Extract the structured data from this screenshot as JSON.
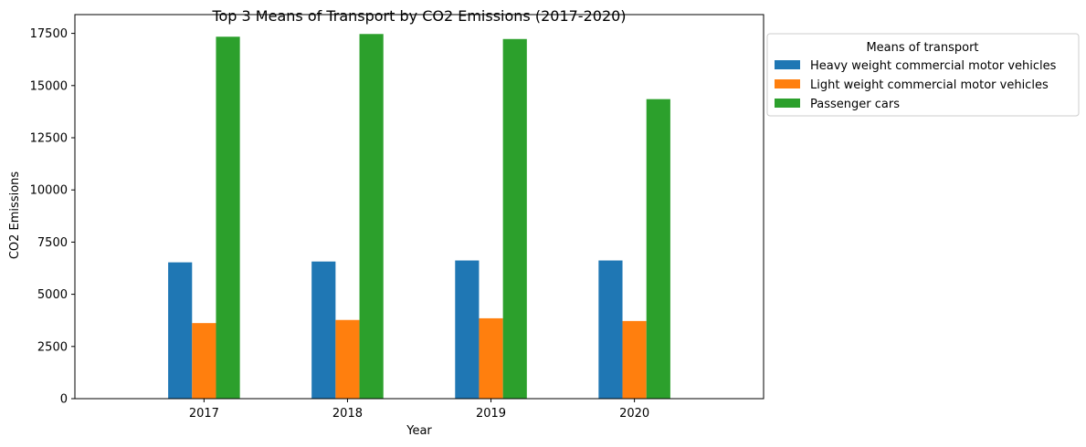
{
  "chart_data": {
    "type": "bar",
    "title": "Top 3 Means of Transport by CO2 Emissions (2017-2020)",
    "xlabel": "Year",
    "ylabel": "CO2 Emissions",
    "categories": [
      "2017",
      "2018",
      "2019",
      "2020"
    ],
    "ylim": [
      0,
      18400
    ],
    "yticks": [
      0,
      2500,
      5000,
      7500,
      10000,
      12500,
      15000,
      17500
    ],
    "legend_title": "Means of transport",
    "legend_position": "outside-top-right",
    "grid": false,
    "series": [
      {
        "name": "Heavy weight commercial motor vehicles",
        "color": "#1f77b4",
        "values": [
          6530,
          6570,
          6620,
          6620
        ]
      },
      {
        "name": "Light weight commercial motor vehicles",
        "color": "#ff7f0e",
        "values": [
          3620,
          3770,
          3850,
          3720
        ]
      },
      {
        "name": "Passenger cars",
        "color": "#2ca02c",
        "values": [
          17340,
          17470,
          17230,
          14350
        ]
      }
    ]
  }
}
